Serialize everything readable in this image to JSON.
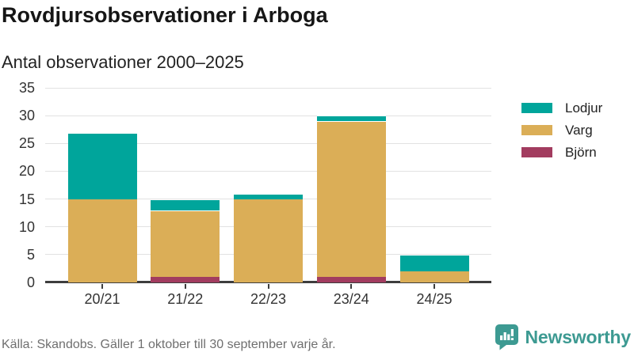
{
  "header": {
    "title": "Rovdjursobservationer i Arboga",
    "subtitle": "Antal observationer 2000–2025"
  },
  "chart_data": {
    "type": "bar",
    "stacked": true,
    "title": "Rovdjursobservationer i Arboga",
    "subtitle": "Antal observationer 2000–2025",
    "categories": [
      "20/21",
      "21/22",
      "22/23",
      "23/24",
      "24/25"
    ],
    "series": [
      {
        "name": "Björn",
        "color": "#a23c5f",
        "values": [
          0,
          1,
          0,
          1,
          0
        ]
      },
      {
        "name": "Varg",
        "color": "#dbae57",
        "values": [
          15,
          12,
          15,
          28,
          2
        ]
      },
      {
        "name": "Lodjur",
        "color": "#00a59b",
        "values": [
          12,
          2,
          1,
          1,
          3
        ]
      }
    ],
    "totals": [
      27,
      15,
      16,
      30,
      5
    ],
    "xlabel": "",
    "ylabel": "",
    "ylim": [
      0,
      35
    ],
    "yticks": [
      0,
      5,
      10,
      15,
      20,
      25,
      30,
      35
    ],
    "grid": true,
    "legend_position": "right",
    "legend_order": [
      "Lodjur",
      "Varg",
      "Björn"
    ]
  },
  "legend": {
    "items": [
      {
        "label": "Lodjur",
        "color": "#00a59b"
      },
      {
        "label": "Varg",
        "color": "#dbae57"
      },
      {
        "label": "Björn",
        "color": "#a23c5f"
      }
    ]
  },
  "footer": {
    "source": "Källa: Skandobs. Gäller 1 oktober till 30 september varje år.",
    "brand": "Newsworthy",
    "brand_color": "#3d9a92",
    "logo_icon": "newsworthy-speech-bubble-chart-icon"
  },
  "colors": {
    "lodjur": "#00a59b",
    "varg": "#dbae57",
    "bjorn": "#a23c5f",
    "grid": "#e2e2e2",
    "axis": "#3d3d3d",
    "brand": "#3d9a92"
  }
}
